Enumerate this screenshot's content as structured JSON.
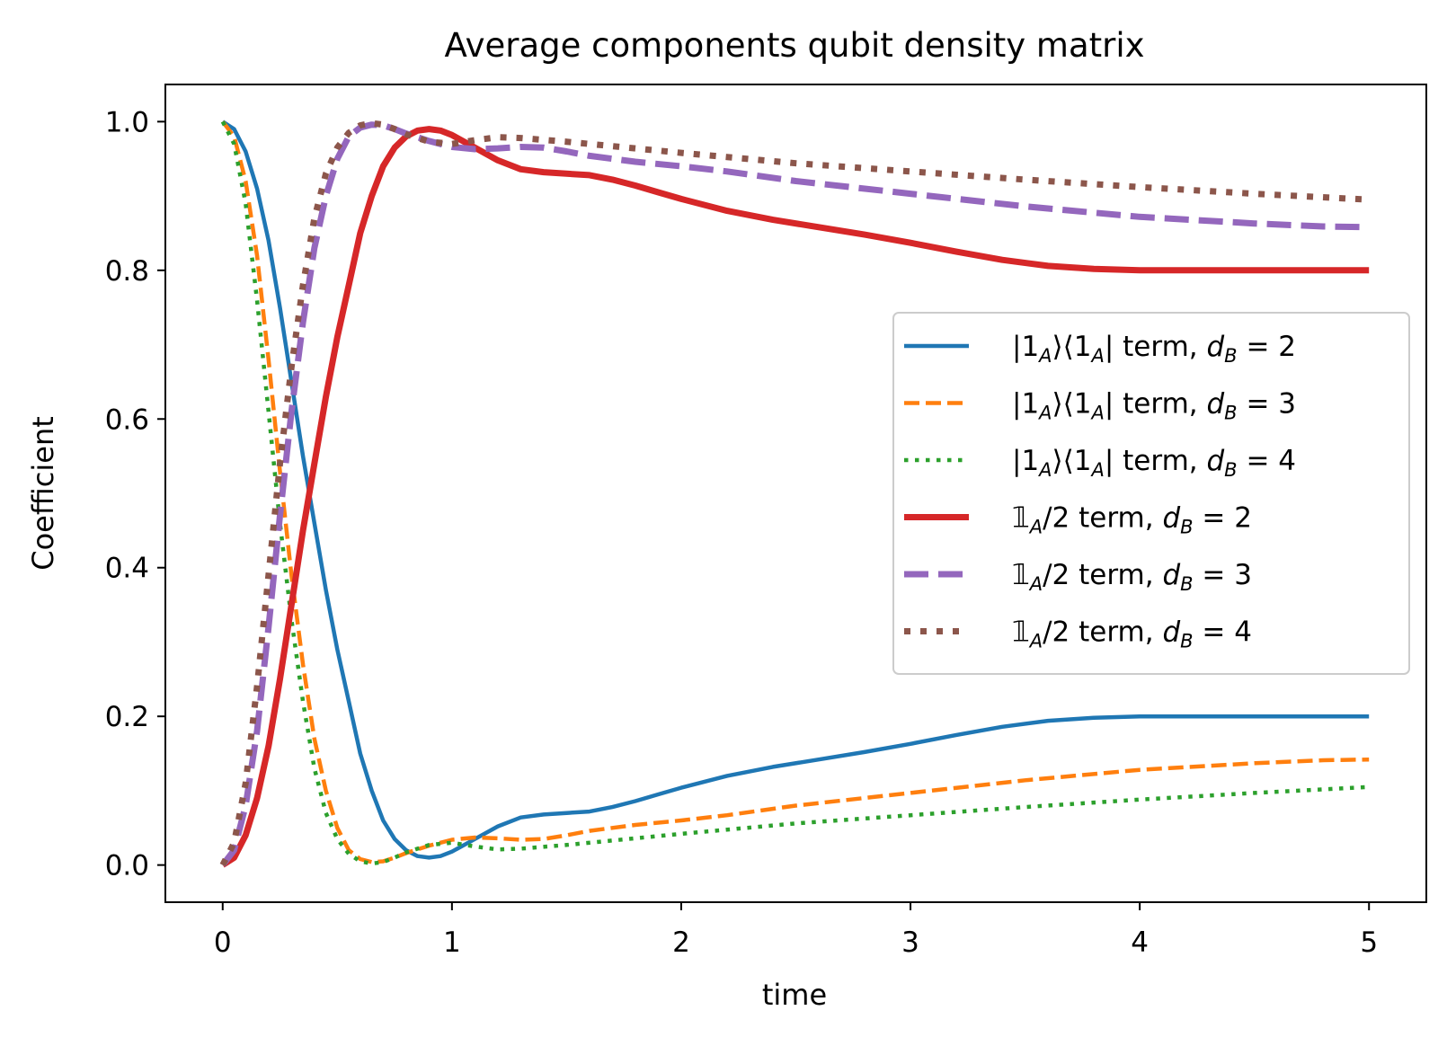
{
  "chart_data": {
    "type": "line",
    "title": "Average components qubit density matrix",
    "xlabel": "time",
    "ylabel": "Coefficient",
    "xlim": [
      -0.25,
      5.25
    ],
    "ylim": [
      -0.05,
      1.05
    ],
    "xticks": [
      0,
      1,
      2,
      3,
      4,
      5
    ],
    "xtick_labels": [
      "0",
      "1",
      "2",
      "3",
      "4",
      "5"
    ],
    "yticks": [
      0.0,
      0.2,
      0.4,
      0.6,
      0.8,
      1.0
    ],
    "ytick_labels": [
      "0.0",
      "0.2",
      "0.4",
      "0.6",
      "0.8",
      "1.0"
    ],
    "grid": false,
    "legend_position": "center-right",
    "series": [
      {
        "name": "|1A⟩⟨1A| term, dB = 2",
        "label_parts": {
          "a": "|1",
          "b": "A",
          "c": "⟩⟨1",
          "d": "A",
          "e": "| term, ",
          "f": "d",
          "g": "B",
          "h": " = 2"
        },
        "color": "#1f77b4",
        "style": "solid",
        "x": [
          0,
          0.05,
          0.1,
          0.15,
          0.2,
          0.25,
          0.3,
          0.35,
          0.4,
          0.45,
          0.5,
          0.55,
          0.6,
          0.65,
          0.7,
          0.75,
          0.8,
          0.85,
          0.9,
          0.95,
          1.0,
          1.1,
          1.2,
          1.3,
          1.4,
          1.5,
          1.6,
          1.7,
          1.8,
          1.9,
          2.0,
          2.2,
          2.4,
          2.6,
          2.8,
          3.0,
          3.2,
          3.4,
          3.6,
          3.8,
          4.0,
          4.2,
          4.4,
          4.6,
          4.8,
          5.0
        ],
        "y": [
          1.0,
          0.99,
          0.96,
          0.91,
          0.84,
          0.75,
          0.65,
          0.55,
          0.46,
          0.37,
          0.29,
          0.22,
          0.15,
          0.1,
          0.06,
          0.035,
          0.02,
          0.012,
          0.01,
          0.012,
          0.018,
          0.035,
          0.052,
          0.064,
          0.068,
          0.07,
          0.072,
          0.078,
          0.086,
          0.095,
          0.104,
          0.12,
          0.132,
          0.142,
          0.152,
          0.163,
          0.175,
          0.186,
          0.194,
          0.198,
          0.2,
          0.2,
          0.2,
          0.2,
          0.2,
          0.2
        ]
      },
      {
        "name": "|1A⟩⟨1A| term, dB = 3",
        "label_parts": {
          "a": "|1",
          "b": "A",
          "c": "⟩⟨1",
          "d": "A",
          "e": "| term, ",
          "f": "d",
          "g": "B",
          "h": " = 3"
        },
        "color": "#ff7f0e",
        "style": "dashed",
        "x": [
          0,
          0.05,
          0.1,
          0.15,
          0.2,
          0.25,
          0.3,
          0.35,
          0.4,
          0.45,
          0.5,
          0.55,
          0.6,
          0.65,
          0.7,
          0.75,
          0.8,
          0.9,
          1.0,
          1.1,
          1.2,
          1.3,
          1.4,
          1.5,
          1.6,
          1.8,
          2.0,
          2.2,
          2.5,
          3.0,
          3.5,
          4.0,
          4.5,
          4.8,
          5.0
        ],
        "y": [
          1.0,
          0.98,
          0.92,
          0.82,
          0.68,
          0.53,
          0.39,
          0.27,
          0.17,
          0.1,
          0.05,
          0.02,
          0.008,
          0.004,
          0.005,
          0.01,
          0.016,
          0.026,
          0.034,
          0.037,
          0.036,
          0.034,
          0.035,
          0.04,
          0.046,
          0.054,
          0.06,
          0.067,
          0.08,
          0.097,
          0.114,
          0.128,
          0.137,
          0.141,
          0.142
        ]
      },
      {
        "name": "|1A⟩⟨1A| term, dB = 4",
        "label_parts": {
          "a": "|1",
          "b": "A",
          "c": "⟩⟨1",
          "d": "A",
          "e": "| term, ",
          "f": "d",
          "g": "B",
          "h": " = 4"
        },
        "color": "#2ca02c",
        "style": "dotted",
        "x": [
          0,
          0.05,
          0.1,
          0.15,
          0.2,
          0.25,
          0.3,
          0.35,
          0.4,
          0.45,
          0.5,
          0.55,
          0.6,
          0.65,
          0.7,
          0.75,
          0.8,
          0.9,
          1.0,
          1.1,
          1.2,
          1.3,
          1.5,
          2.0,
          2.5,
          3.0,
          3.5,
          4.0,
          4.5,
          5.0
        ],
        "y": [
          1.0,
          0.97,
          0.89,
          0.76,
          0.61,
          0.46,
          0.33,
          0.22,
          0.13,
          0.07,
          0.035,
          0.015,
          0.005,
          0.002,
          0.004,
          0.01,
          0.017,
          0.027,
          0.03,
          0.025,
          0.021,
          0.022,
          0.027,
          0.042,
          0.056,
          0.067,
          0.078,
          0.088,
          0.097,
          0.105
        ]
      },
      {
        "name": "𝟙A/2 term, dB = 2",
        "label_parts": {
          "a": "𝟙",
          "b": "A",
          "c": "/2 term, ",
          "d": "",
          "e": "",
          "f": "d",
          "g": "B",
          "h": " = 2"
        },
        "color": "#d62728",
        "style": "solid",
        "x": [
          0,
          0.05,
          0.1,
          0.15,
          0.2,
          0.25,
          0.3,
          0.35,
          0.4,
          0.45,
          0.5,
          0.55,
          0.6,
          0.65,
          0.7,
          0.75,
          0.8,
          0.85,
          0.9,
          0.95,
          1.0,
          1.1,
          1.2,
          1.3,
          1.4,
          1.5,
          1.6,
          1.7,
          1.8,
          1.9,
          2.0,
          2.2,
          2.4,
          2.6,
          2.8,
          3.0,
          3.2,
          3.4,
          3.6,
          3.8,
          4.0,
          4.2,
          4.4,
          4.6,
          4.8,
          5.0
        ],
        "y": [
          0.0,
          0.01,
          0.04,
          0.09,
          0.16,
          0.25,
          0.35,
          0.45,
          0.54,
          0.63,
          0.71,
          0.78,
          0.85,
          0.9,
          0.94,
          0.965,
          0.98,
          0.988,
          0.99,
          0.988,
          0.982,
          0.965,
          0.948,
          0.936,
          0.932,
          0.93,
          0.928,
          0.922,
          0.914,
          0.905,
          0.896,
          0.88,
          0.868,
          0.858,
          0.848,
          0.837,
          0.825,
          0.814,
          0.806,
          0.802,
          0.8,
          0.8,
          0.8,
          0.8,
          0.8,
          0.8
        ]
      },
      {
        "name": "𝟙A/2 term, dB = 3",
        "label_parts": {
          "a": "𝟙",
          "b": "A",
          "c": "/2 term, ",
          "d": "",
          "e": "",
          "f": "d",
          "g": "B",
          "h": " = 3"
        },
        "color": "#9467bd",
        "style": "dashed",
        "x": [
          0,
          0.05,
          0.1,
          0.15,
          0.2,
          0.25,
          0.3,
          0.35,
          0.4,
          0.45,
          0.5,
          0.55,
          0.6,
          0.65,
          0.7,
          0.75,
          0.8,
          0.9,
          1.0,
          1.1,
          1.2,
          1.3,
          1.4,
          1.5,
          1.6,
          1.8,
          2.0,
          2.2,
          2.5,
          3.0,
          3.5,
          4.0,
          4.5,
          4.8,
          5.0
        ],
        "y": [
          0.0,
          0.02,
          0.08,
          0.18,
          0.32,
          0.47,
          0.61,
          0.73,
          0.83,
          0.9,
          0.95,
          0.98,
          0.992,
          0.996,
          0.995,
          0.99,
          0.984,
          0.974,
          0.966,
          0.963,
          0.964,
          0.966,
          0.965,
          0.96,
          0.954,
          0.946,
          0.94,
          0.933,
          0.92,
          0.903,
          0.886,
          0.872,
          0.863,
          0.859,
          0.858
        ]
      },
      {
        "name": "𝟙A/2 term, dB = 4",
        "label_parts": {
          "a": "𝟙",
          "b": "A",
          "c": "/2 term, ",
          "d": "",
          "e": "",
          "f": "d",
          "g": "B",
          "h": " = 4"
        },
        "color": "#8c564b",
        "style": "dotted",
        "x": [
          0,
          0.05,
          0.1,
          0.15,
          0.2,
          0.25,
          0.3,
          0.35,
          0.4,
          0.45,
          0.5,
          0.55,
          0.6,
          0.65,
          0.7,
          0.75,
          0.8,
          0.9,
          1.0,
          1.1,
          1.2,
          1.3,
          1.5,
          2.0,
          2.5,
          3.0,
          3.5,
          4.0,
          4.5,
          5.0
        ],
        "y": [
          0.0,
          0.03,
          0.11,
          0.24,
          0.39,
          0.54,
          0.67,
          0.78,
          0.87,
          0.93,
          0.965,
          0.985,
          0.995,
          0.998,
          0.996,
          0.99,
          0.983,
          0.973,
          0.97,
          0.975,
          0.979,
          0.978,
          0.973,
          0.958,
          0.944,
          0.933,
          0.922,
          0.912,
          0.903,
          0.895
        ]
      }
    ]
  }
}
